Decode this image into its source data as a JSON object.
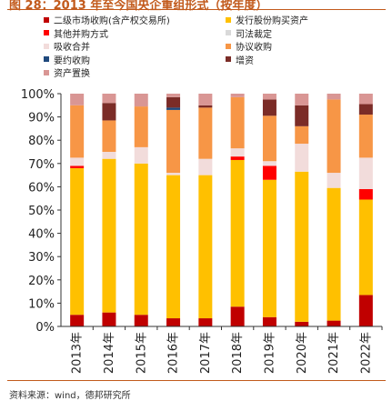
{
  "title": "图 28：2013 年至今国央企重组形式（按年度）",
  "source": "资料来源：wind，德邦研究所",
  "chart_data": {
    "type": "bar",
    "stacked": "percent",
    "categories": [
      "2013年",
      "2014年",
      "2015年",
      "2016年",
      "2017年",
      "2018年",
      "2019年",
      "2020年",
      "2021年",
      "2022年"
    ],
    "ylim": [
      0,
      100
    ],
    "yticks": [
      "0%",
      "10%",
      "20%",
      "30%",
      "40%",
      "50%",
      "60%",
      "70%",
      "80%",
      "90%",
      "100%"
    ],
    "series": [
      {
        "name": "二级市场收购(含产权交易所)",
        "color": "#c00000",
        "values": [
          5,
          6,
          5,
          3.5,
          3.5,
          8.5,
          4,
          2,
          2.5,
          13.5
        ]
      },
      {
        "name": "发行股份购买资产",
        "color": "#ffc000",
        "values": [
          63,
          66,
          65,
          61.5,
          61.5,
          63,
          59,
          64.5,
          57,
          41
        ]
      },
      {
        "name": "其他并购方式",
        "color": "#ff0000",
        "values": [
          1,
          0,
          0,
          0,
          0,
          1.5,
          6,
          0,
          0,
          4.5
        ]
      },
      {
        "name": "司法裁定",
        "color": "#d9d9d9",
        "values": [
          0,
          0,
          0,
          0,
          0,
          0,
          0,
          0,
          0,
          0
        ]
      },
      {
        "name": "吸收合并",
        "color": "#f2dcdb",
        "values": [
          3.5,
          3,
          7,
          1,
          7,
          3.5,
          2,
          12,
          6.5,
          13.5
        ]
      },
      {
        "name": "协议收购",
        "color": "#f79646",
        "values": [
          22.5,
          13.5,
          17.5,
          27,
          22,
          22,
          19.5,
          7.5,
          31.5,
          18.5
        ]
      },
      {
        "name": "要约收购",
        "color": "#1f497d",
        "values": [
          0,
          0,
          0,
          1,
          0,
          0,
          0,
          0,
          0,
          0
        ]
      },
      {
        "name": "增资",
        "color": "#7b2c27",
        "values": [
          0,
          7.5,
          0,
          4.5,
          1,
          0,
          7,
          9,
          0,
          4.5
        ]
      },
      {
        "name": "资产置换",
        "color": "#d99694",
        "values": [
          5,
          4,
          5.5,
          1.5,
          5,
          1.5,
          2.5,
          5,
          2.5,
          4.5
        ]
      }
    ]
  }
}
